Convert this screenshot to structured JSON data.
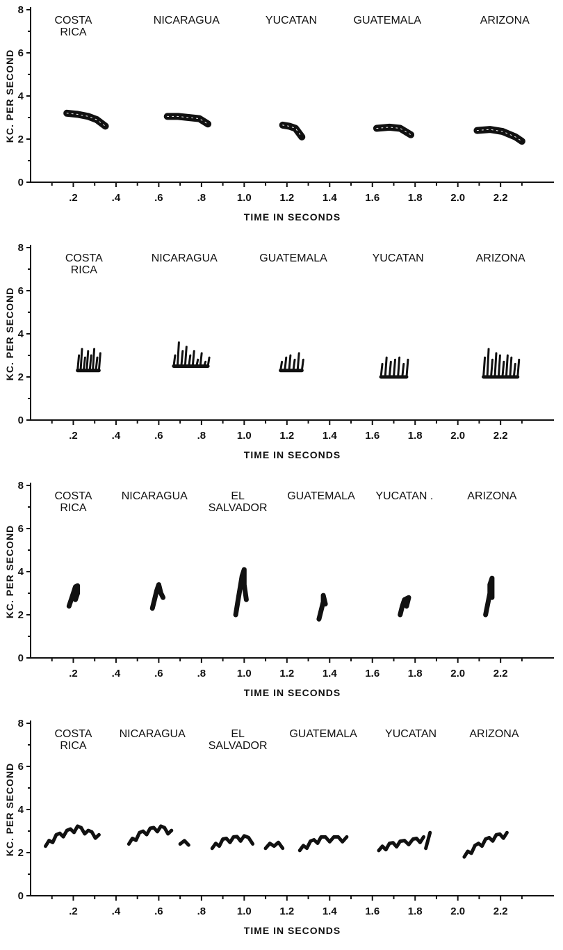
{
  "figure": {
    "ink_color": "#111111",
    "background": "#ffffff"
  },
  "chart_data": [
    {
      "type": "scatter",
      "style": "sonagram",
      "xlabel": "TIME IN SECONDS",
      "ylabel": "KC. PER SECOND",
      "xlim": [
        0,
        2.45
      ],
      "ylim": [
        0,
        8
      ],
      "x_ticks": [
        ".2",
        ".4",
        ".6",
        ".8",
        "1.0",
        "1.2",
        "1.4",
        "1.6",
        "1.8",
        "2.0",
        "2.2"
      ],
      "y_ticks": [
        "0",
        "2",
        "4",
        "6",
        "8"
      ],
      "regions": [
        {
          "label_lines": [
            "COSTA",
            "RICA"
          ],
          "label_x": 0.2
        },
        {
          "label_lines": [
            "NICARAGUA"
          ],
          "label_x": 0.73
        },
        {
          "label_lines": [
            "YUCATAN"
          ],
          "label_x": 1.22
        },
        {
          "label_lines": [
            "GUATEMALA"
          ],
          "label_x": 1.67
        },
        {
          "label_lines": [
            "ARIZONA"
          ],
          "label_x": 2.22
        }
      ],
      "series": [
        {
          "kind": "band",
          "points": [
            [
              0.17,
              3.2
            ],
            [
              0.22,
              3.15
            ],
            [
              0.27,
              3.05
            ],
            [
              0.31,
              2.9
            ],
            [
              0.35,
              2.6
            ]
          ]
        },
        {
          "kind": "band",
          "points": [
            [
              0.64,
              3.05
            ],
            [
              0.69,
              3.05
            ],
            [
              0.74,
              3.0
            ],
            [
              0.79,
              2.95
            ],
            [
              0.83,
              2.7
            ]
          ]
        },
        {
          "kind": "band",
          "points": [
            [
              1.18,
              2.65
            ],
            [
              1.21,
              2.6
            ],
            [
              1.24,
              2.5
            ],
            [
              1.27,
              2.1
            ]
          ]
        },
        {
          "kind": "band",
          "points": [
            [
              1.62,
              2.5
            ],
            [
              1.68,
              2.55
            ],
            [
              1.73,
              2.5
            ],
            [
              1.78,
              2.2
            ]
          ]
        },
        {
          "kind": "band",
          "points": [
            [
              2.09,
              2.4
            ],
            [
              2.15,
              2.45
            ],
            [
              2.21,
              2.35
            ],
            [
              2.27,
              2.1
            ],
            [
              2.3,
              1.9
            ]
          ]
        }
      ]
    },
    {
      "type": "scatter",
      "style": "sonagram",
      "xlabel": "TIME IN SECONDS",
      "ylabel": "KC. PER SECOND",
      "xlim": [
        0,
        2.45
      ],
      "ylim": [
        0,
        8
      ],
      "x_ticks": [
        ".2",
        ".4",
        ".6",
        ".8",
        "1.0",
        "1.2",
        "1.4",
        "1.6",
        "1.8",
        "2.0",
        "2.2"
      ],
      "y_ticks": [
        "0",
        "2",
        "4",
        "6",
        "8"
      ],
      "regions": [
        {
          "label_lines": [
            "COSTA",
            "RICA"
          ],
          "label_x": 0.25
        },
        {
          "label_lines": [
            "NICARAGUA"
          ],
          "label_x": 0.72
        },
        {
          "label_lines": [
            "GUATEMALA"
          ],
          "label_x": 1.23
        },
        {
          "label_lines": [
            "YUCATAN"
          ],
          "label_x": 1.72
        },
        {
          "label_lines": [
            "ARIZONA"
          ],
          "label_x": 2.2
        }
      ],
      "series": [
        {
          "kind": "spikes",
          "x_start": 0.22,
          "x_end": 0.32,
          "base": 2.3,
          "peaks": [
            3.0,
            3.3,
            2.9,
            3.2,
            3.0,
            3.3,
            2.9,
            3.1
          ]
        },
        {
          "kind": "spikes",
          "x_start": 0.67,
          "x_end": 0.83,
          "base": 2.5,
          "peaks": [
            3.0,
            3.6,
            3.2,
            3.4,
            3.0,
            3.2,
            2.8,
            3.1,
            2.7,
            2.9
          ]
        },
        {
          "kind": "spikes",
          "x_start": 1.17,
          "x_end": 1.27,
          "base": 2.3,
          "peaks": [
            2.7,
            2.9,
            3.0,
            2.8,
            3.1,
            2.8
          ]
        },
        {
          "kind": "spikes",
          "x_start": 1.64,
          "x_end": 1.76,
          "base": 2.0,
          "peaks": [
            2.6,
            2.9,
            2.7,
            2.8,
            2.9,
            2.6,
            2.8
          ]
        },
        {
          "kind": "spikes",
          "x_start": 2.12,
          "x_end": 2.28,
          "base": 2.0,
          "peaks": [
            2.9,
            3.3,
            2.8,
            3.1,
            3.0,
            2.7,
            3.0,
            2.9,
            2.6,
            2.8
          ]
        }
      ]
    },
    {
      "type": "scatter",
      "style": "sonagram",
      "xlabel": "TIME IN SECONDS",
      "ylabel": "KC. PER SECOND",
      "xlim": [
        0,
        2.45
      ],
      "ylim": [
        0,
        8
      ],
      "x_ticks": [
        ".2",
        ".4",
        ".6",
        ".8",
        "1.0",
        "1.2",
        "1.4",
        "1.6",
        "1.8",
        "2.0",
        "2.2"
      ],
      "y_ticks": [
        "0",
        "2",
        "4",
        "6",
        "8"
      ],
      "regions": [
        {
          "label_lines": [
            "COSTA",
            "RICA"
          ],
          "label_x": 0.2
        },
        {
          "label_lines": [
            "NICARAGUA"
          ],
          "label_x": 0.58
        },
        {
          "label_lines": [
            "EL",
            "SALVADOR"
          ],
          "label_x": 0.97
        },
        {
          "label_lines": [
            "GUATEMALA"
          ],
          "label_x": 1.36
        },
        {
          "label_lines": [
            "YUCATAN ."
          ],
          "label_x": 1.75
        },
        {
          "label_lines": [
            "ARIZONA"
          ],
          "label_x": 2.16
        }
      ],
      "series": [
        {
          "kind": "blob",
          "points": [
            [
              0.18,
              2.4
            ],
            [
              0.19,
              2.7
            ],
            [
              0.2,
              3.0
            ],
            [
              0.21,
              3.3
            ],
            [
              0.22,
              3.35
            ],
            [
              0.22,
              3.0
            ],
            [
              0.21,
              2.7
            ]
          ]
        },
        {
          "kind": "blob",
          "points": [
            [
              0.57,
              2.3
            ],
            [
              0.58,
              2.7
            ],
            [
              0.59,
              3.1
            ],
            [
              0.6,
              3.4
            ],
            [
              0.61,
              3.0
            ],
            [
              0.62,
              2.8
            ]
          ]
        },
        {
          "kind": "blob",
          "points": [
            [
              0.96,
              2.0
            ],
            [
              0.97,
              2.6
            ],
            [
              0.98,
              3.2
            ],
            [
              0.99,
              3.8
            ],
            [
              1.0,
              4.1
            ],
            [
              1.0,
              3.4
            ],
            [
              1.01,
              2.7
            ]
          ]
        },
        {
          "kind": "blob",
          "points": [
            [
              1.35,
              1.8
            ],
            [
              1.36,
              2.2
            ],
            [
              1.37,
              2.6
            ],
            [
              1.37,
              2.9
            ],
            [
              1.38,
              2.5
            ]
          ]
        },
        {
          "kind": "blob",
          "points": [
            [
              1.73,
              2.0
            ],
            [
              1.74,
              2.4
            ],
            [
              1.75,
              2.7
            ],
            [
              1.77,
              2.8
            ],
            [
              1.76,
              2.4
            ]
          ]
        },
        {
          "kind": "blob",
          "points": [
            [
              2.13,
              2.0
            ],
            [
              2.14,
              2.5
            ],
            [
              2.15,
              3.0
            ],
            [
              2.15,
              3.4
            ],
            [
              2.16,
              3.7
            ],
            [
              2.16,
              2.8
            ]
          ]
        }
      ]
    },
    {
      "type": "scatter",
      "style": "sonagram",
      "xlabel": "TIME IN SECONDS",
      "ylabel": "KC. PER SECOND",
      "xlim": [
        0,
        2.45
      ],
      "ylim": [
        0,
        8
      ],
      "x_ticks": [
        ".2",
        ".4",
        ".6",
        ".8",
        "1.0",
        "1.2",
        "1.4",
        "1.6",
        "1.8",
        "2.0",
        "2.2"
      ],
      "y_ticks": [
        "0",
        "2",
        "4",
        "6",
        "8"
      ],
      "regions": [
        {
          "label_lines": [
            "COSTA",
            "RICA"
          ],
          "label_x": 0.2
        },
        {
          "label_lines": [
            "NICARAGUA"
          ],
          "label_x": 0.57
        },
        {
          "label_lines": [
            "EL",
            "SALVADOR"
          ],
          "label_x": 0.97
        },
        {
          "label_lines": [
            "GUATEMALA"
          ],
          "label_x": 1.37
        },
        {
          "label_lines": [
            "YUCATAN"
          ],
          "label_x": 1.78
        },
        {
          "label_lines": [
            "ARIZONA"
          ],
          "label_x": 2.17
        }
      ],
      "series": [
        {
          "kind": "wave",
          "points": [
            [
              0.07,
              2.3
            ],
            [
              0.12,
              2.7
            ],
            [
              0.17,
              2.9
            ],
            [
              0.22,
              3.1
            ],
            [
              0.27,
              2.9
            ],
            [
              0.32,
              2.7
            ]
          ]
        },
        {
          "kind": "wave",
          "points": [
            [
              0.46,
              2.4
            ],
            [
              0.51,
              2.8
            ],
            [
              0.56,
              3.0
            ],
            [
              0.61,
              3.1
            ],
            [
              0.66,
              2.9
            ]
          ]
        },
        {
          "kind": "wave",
          "points": [
            [
              0.7,
              2.4
            ],
            [
              0.74,
              2.45
            ]
          ]
        },
        {
          "kind": "wave",
          "points": [
            [
              0.85,
              2.2
            ],
            [
              0.9,
              2.5
            ],
            [
              0.95,
              2.6
            ],
            [
              1.0,
              2.65
            ],
            [
              1.04,
              2.5
            ]
          ]
        },
        {
          "kind": "wave",
          "points": [
            [
              1.1,
              2.2
            ],
            [
              1.14,
              2.4
            ],
            [
              1.18,
              2.3
            ]
          ]
        },
        {
          "kind": "wave",
          "points": [
            [
              1.26,
              2.1
            ],
            [
              1.31,
              2.4
            ],
            [
              1.36,
              2.6
            ],
            [
              1.42,
              2.6
            ],
            [
              1.48,
              2.6
            ]
          ]
        },
        {
          "kind": "wave",
          "points": [
            [
              1.63,
              2.1
            ],
            [
              1.68,
              2.3
            ],
            [
              1.73,
              2.4
            ],
            [
              1.79,
              2.5
            ],
            [
              1.84,
              2.6
            ]
          ]
        },
        {
          "kind": "wave",
          "points": [
            [
              1.85,
              2.2
            ],
            [
              1.87,
              2.8
            ]
          ]
        },
        {
          "kind": "wave",
          "points": [
            [
              2.03,
              1.8
            ],
            [
              2.08,
              2.2
            ],
            [
              2.13,
              2.5
            ],
            [
              2.18,
              2.7
            ],
            [
              2.23,
              2.8
            ]
          ]
        }
      ]
    }
  ]
}
